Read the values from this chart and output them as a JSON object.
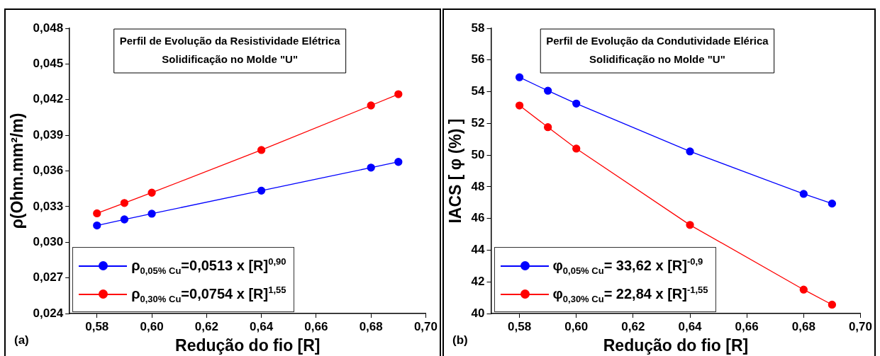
{
  "chart_data": [
    {
      "type": "line",
      "title": "Perfil de Evolução da Resistividade Elétrica",
      "subtitle": "Solidificação no Molde \"U\"",
      "xlabel": "Redução do fio [R]",
      "ylabel": "ρ(Ohm.mm²/m)",
      "x": [
        0.58,
        0.59,
        0.6,
        0.64,
        0.68,
        0.69
      ],
      "series": [
        {
          "name": "ρ$_{0,05% Cu}$=0,0513 x [R]$^{0,90}$",
          "color": "#0000ff",
          "values": [
            0.03141,
            0.03192,
            0.0324,
            0.03434,
            0.03628,
            0.03676
          ]
        },
        {
          "name": "ρ$_{0,30% Cu}$=0,0754 x [R]$^{1,55}$",
          "color": "#ff0000",
          "values": [
            0.03243,
            0.0333,
            0.03417,
            0.03776,
            0.04151,
            0.04246
          ]
        }
      ],
      "xlim": [
        0.57,
        0.7
      ],
      "xticks": [
        {
          "value": 0.58,
          "label": "0,58"
        },
        {
          "value": 0.6,
          "label": "0,60"
        },
        {
          "value": 0.62,
          "label": "0,62"
        },
        {
          "value": 0.64,
          "label": "0,64"
        },
        {
          "value": 0.66,
          "label": "0,66"
        },
        {
          "value": 0.68,
          "label": "0,68"
        },
        {
          "value": 0.7,
          "label": "0,70"
        }
      ],
      "ylim": [
        0.024,
        0.048
      ],
      "yticks": [
        {
          "value": 0.024,
          "label": "0,024"
        },
        {
          "value": 0.027,
          "label": "0,027"
        },
        {
          "value": 0.03,
          "label": "0,030"
        },
        {
          "value": 0.033,
          "label": "0,033"
        },
        {
          "value": 0.036,
          "label": "0,036"
        },
        {
          "value": 0.039,
          "label": "0,039"
        },
        {
          "value": 0.042,
          "label": "0,042"
        },
        {
          "value": 0.045,
          "label": "0,045"
        },
        {
          "value": 0.048,
          "label": "0,048"
        }
      ],
      "annotations": [
        "(a)"
      ],
      "grid": false,
      "legend": "bottom left",
      "marker": "circle",
      "line_style": "solid"
    },
    {
      "type": "line",
      "title": "Perfil de Evolução da Condutividade Elérica",
      "subtitle": "Solidificação no Molde \"U\"",
      "xlabel": "Redução do fio [R]",
      "ylabel": "IACS [ φ (%) ]",
      "x": [
        0.58,
        0.59,
        0.6,
        0.64,
        0.68,
        0.69
      ],
      "series": [
        {
          "name": "φ$_{0,05% Cu}$= 33,62 x [R]$^{-0,9}$",
          "color": "#0000ff",
          "values": [
            54.91,
            54.06,
            53.25,
            50.23,
            47.55,
            46.94
          ]
        },
        {
          "name": "φ$_{0,30% Cu}$= 22,84 x [R]$^{-1,55}$",
          "color": "#ff0000",
          "values": [
            53.13,
            51.76,
            50.41,
            45.59,
            41.51,
            40.56
          ]
        }
      ],
      "xlim": [
        0.57,
        0.7
      ],
      "xticks": [
        {
          "value": 0.58,
          "label": "0,58"
        },
        {
          "value": 0.6,
          "label": "0,60"
        },
        {
          "value": 0.62,
          "label": "0,62"
        },
        {
          "value": 0.64,
          "label": "0,64"
        },
        {
          "value": 0.66,
          "label": "0,66"
        },
        {
          "value": 0.68,
          "label": "0,68"
        },
        {
          "value": 0.7,
          "label": "0,70"
        }
      ],
      "ylim": [
        40,
        58
      ],
      "yticks": [
        40,
        42,
        44,
        46,
        48,
        50,
        52,
        54,
        56,
        58
      ],
      "annotations": [
        "(b)"
      ],
      "grid": false,
      "legend": "bottom left",
      "marker": "circle",
      "line_style": "solid"
    }
  ]
}
